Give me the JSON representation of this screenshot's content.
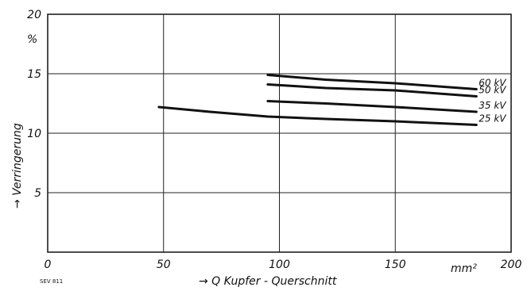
{
  "chart_data": {
    "type": "line",
    "xlabel": "→ Q   Kupfer - Querschnitt",
    "ylabel": "→ Verringerung",
    "yunit": "%",
    "xunit": "mm²",
    "xlim": [
      0,
      200
    ],
    "ylim": [
      0,
      20
    ],
    "xticks": [
      "0",
      "50",
      "100",
      "150",
      "200"
    ],
    "yticks": [
      "5",
      "10",
      "15",
      "20"
    ],
    "grid": true,
    "source_note": "SEV 811",
    "series": [
      {
        "name": "60 kV",
        "x": [
          95,
          120,
          150,
          185
        ],
        "y": [
          14.9,
          14.5,
          14.2,
          13.7
        ]
      },
      {
        "name": "50 kV",
        "x": [
          95,
          120,
          150,
          185
        ],
        "y": [
          14.1,
          13.8,
          13.6,
          13.1
        ]
      },
      {
        "name": "35 kV",
        "x": [
          95,
          120,
          150,
          185
        ],
        "y": [
          12.7,
          12.5,
          12.2,
          11.8
        ]
      },
      {
        "name": "25 kV",
        "x": [
          48,
          70,
          95,
          120,
          150,
          185
        ],
        "y": [
          12.2,
          11.8,
          11.4,
          11.2,
          11.0,
          10.7
        ]
      }
    ]
  }
}
